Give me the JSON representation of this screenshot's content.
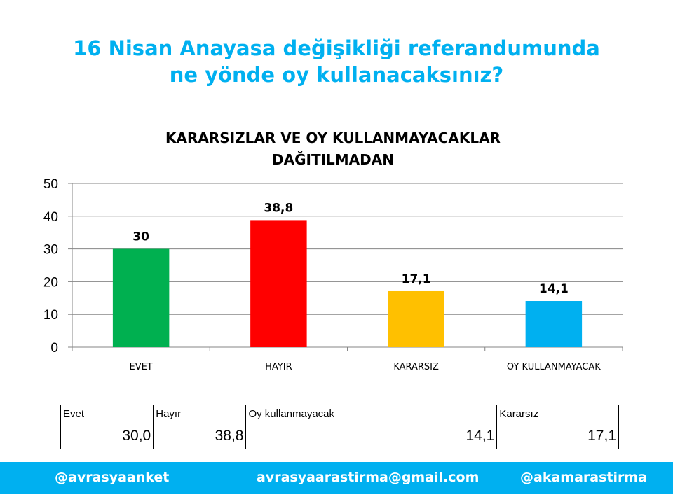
{
  "title_lines": [
    "16 Nisan Anayasa değişikliği referandumunda",
    "ne yönde oy kullanacaksınız?"
  ],
  "chart_data": {
    "type": "bar",
    "title_lines": [
      "KARARSIZLAR VE OY KULLANMAYACAKLAR",
      "DAĞITILMADAN"
    ],
    "categories": [
      "EVET",
      "HAYIR",
      "KARARSIZ",
      "OY KULLANMAYACAK"
    ],
    "values": [
      30,
      38.8,
      17.1,
      14.1
    ],
    "data_labels": [
      "30",
      "38,8",
      "17,1",
      "14,1"
    ],
    "colors": [
      "#00b050",
      "#ff0000",
      "#ffc000",
      "#00b0f0"
    ],
    "ylim": [
      0,
      50
    ],
    "yticks": [
      0,
      10,
      20,
      30,
      40,
      50
    ],
    "grid": true,
    "legend": false
  },
  "table": {
    "headers": [
      "Evet",
      "Hayır",
      "Oy kullanmayacak",
      "Kararsız"
    ],
    "values": [
      "30,0",
      "38,8",
      "14,1",
      "17,1"
    ]
  },
  "footer": {
    "left": "@avrasyaanket",
    "center": "avrasyaarastirma@gmail.com",
    "right": "@akamarastirma"
  }
}
